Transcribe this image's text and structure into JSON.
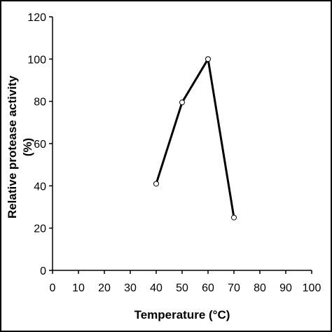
{
  "chart_data": {
    "type": "line",
    "title": "",
    "xlabel": "Temperature (°C)",
    "ylabel_lines": [
      "Relative protease activity",
      "(%)"
    ],
    "xlim": [
      0,
      100
    ],
    "ylim": [
      0,
      120
    ],
    "x_ticks": [
      0,
      10,
      20,
      30,
      40,
      50,
      60,
      70,
      80,
      90,
      100
    ],
    "y_ticks": [
      0,
      20,
      40,
      60,
      80,
      100,
      120
    ],
    "grid": false,
    "legend": "none",
    "series": [
      {
        "x": [
          40,
          50,
          60,
          70
        ],
        "y": [
          41,
          79.5,
          100,
          25
        ],
        "line_color": "#000000",
        "marker": "open-circle"
      }
    ]
  }
}
